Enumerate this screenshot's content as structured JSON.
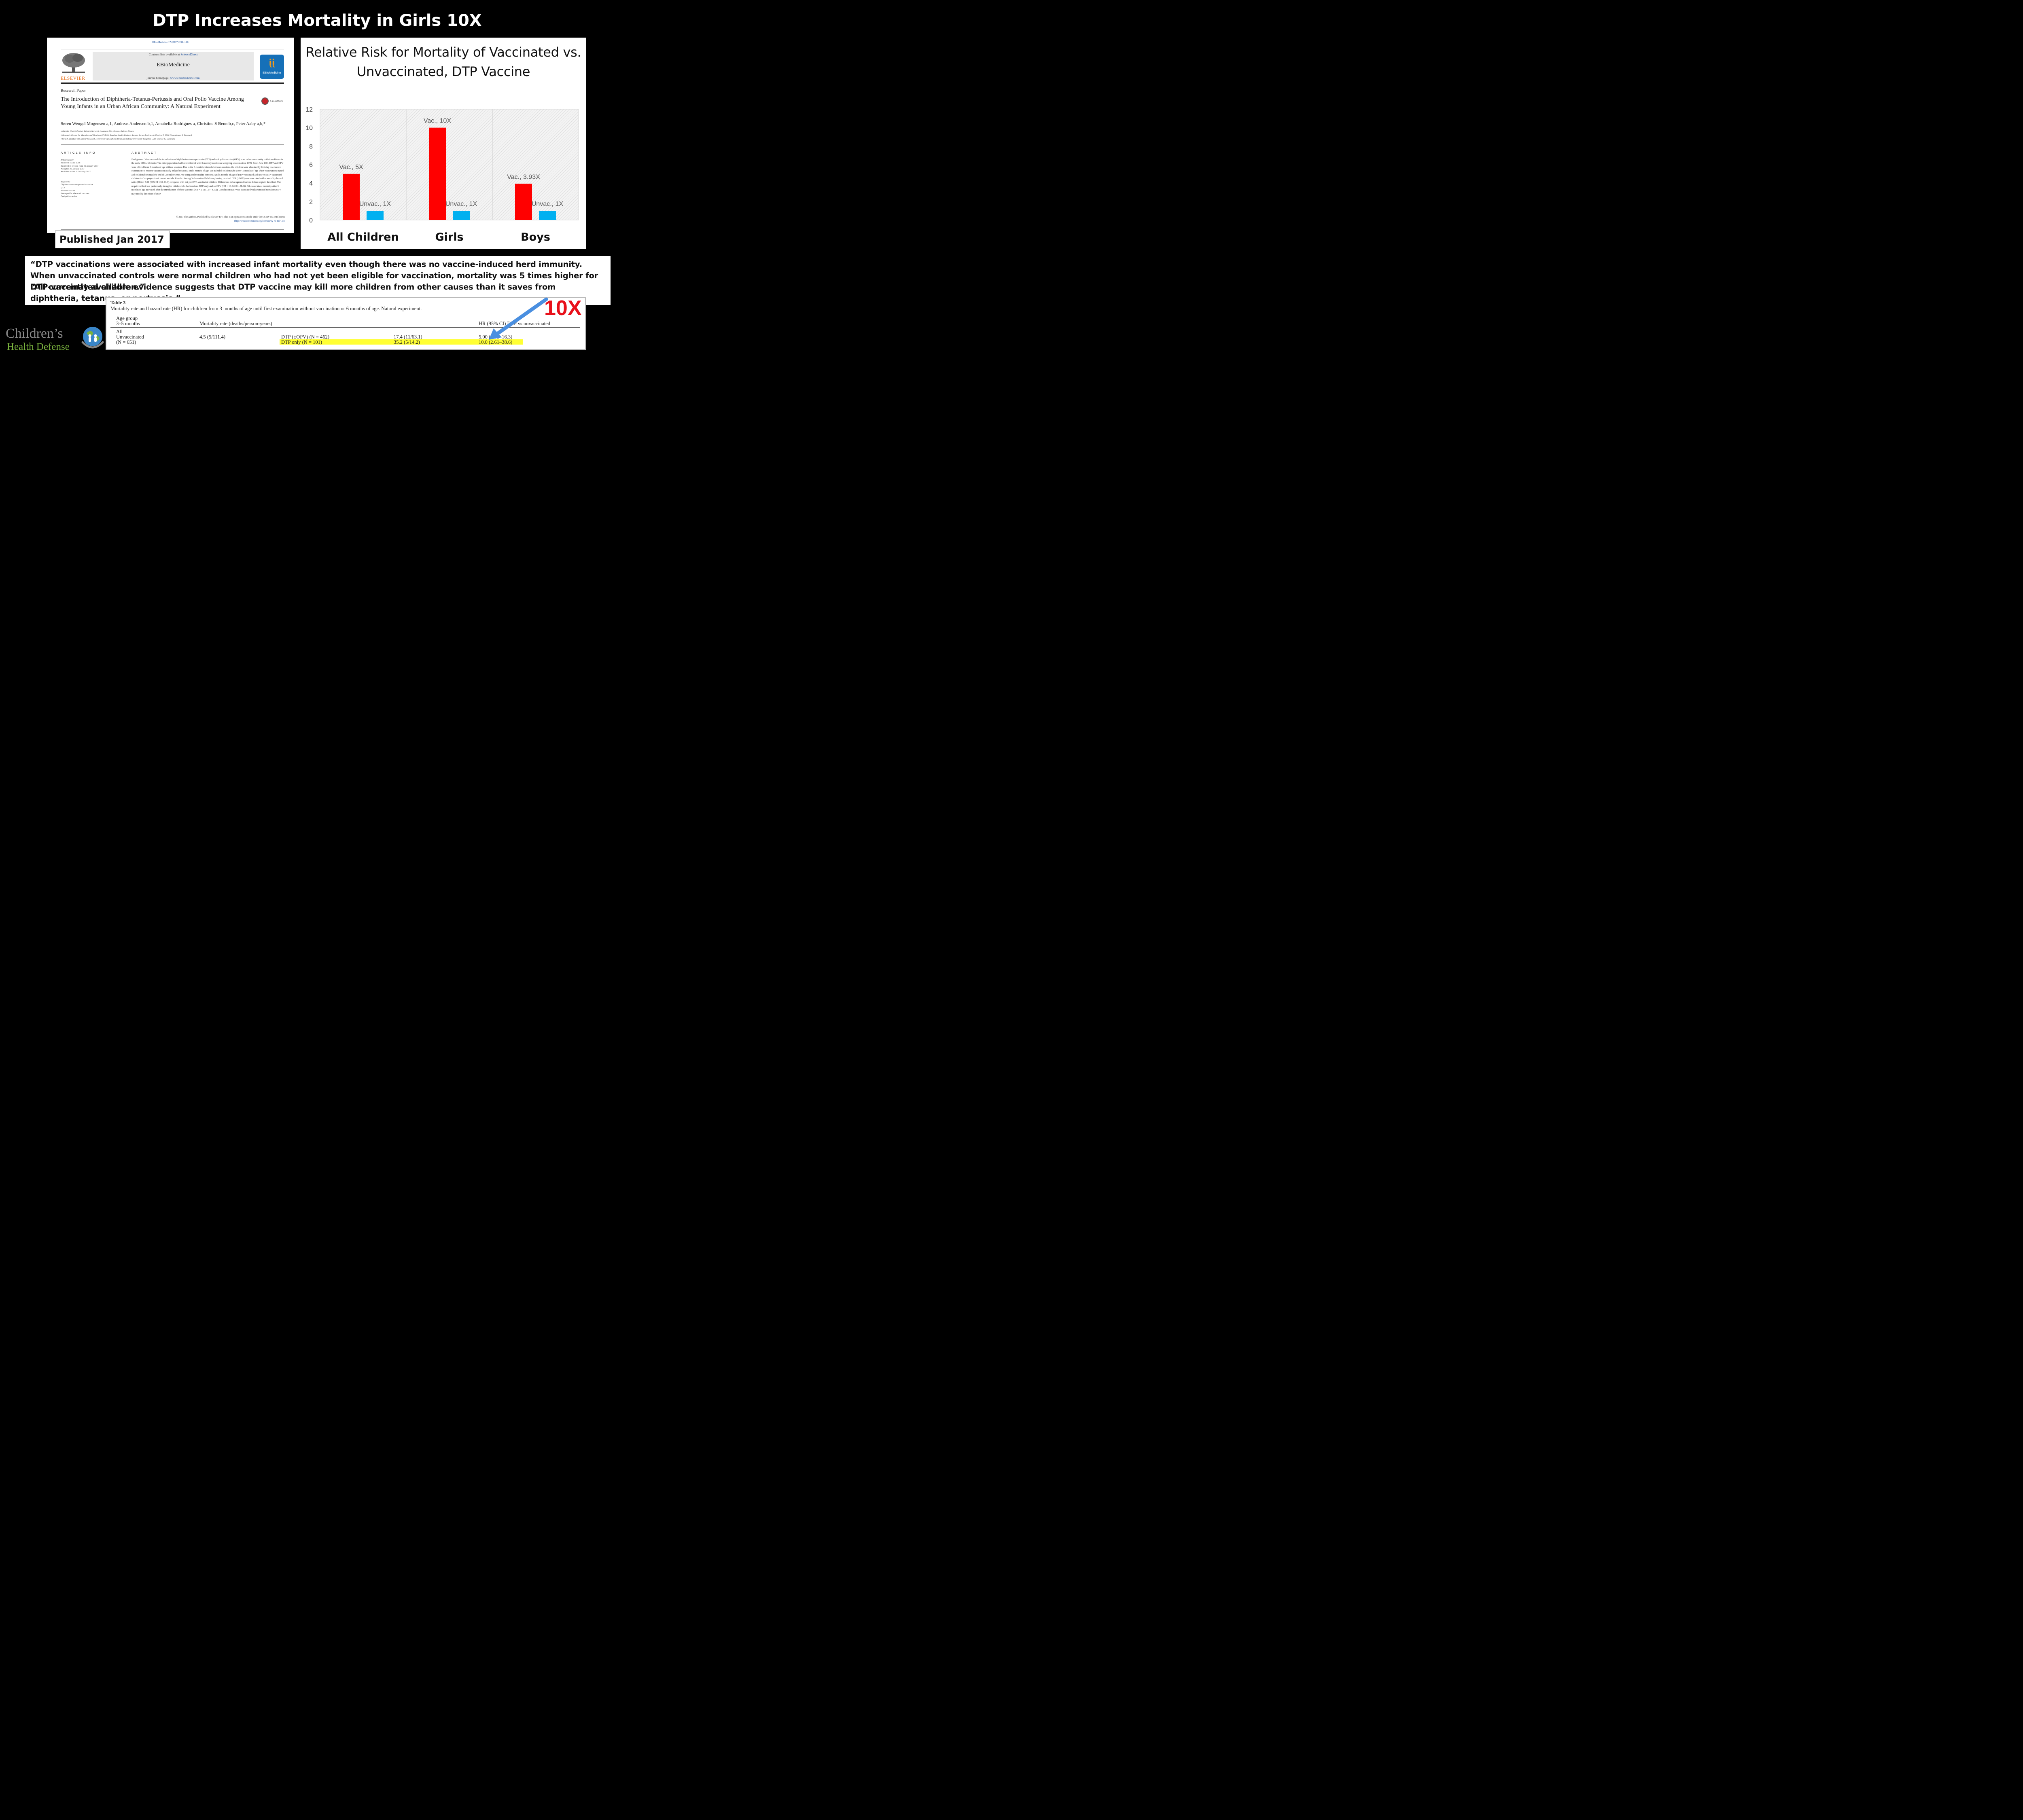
{
  "slide": {
    "title": "DTP Increases Mortality in Girls 10X",
    "published_label": "Published Jan 2017"
  },
  "paper": {
    "citation": "EBioMedicine 17 (2017) 192–198",
    "contents_prefix": "Contents lists available at ",
    "contents_link": "ScienceDirect",
    "journal_name": "EBioMedicine",
    "homepage_prefix": "journal homepage: ",
    "homepage_link": "www.ebiomedicine.com",
    "publisher": "ELSEVIER",
    "logo_text": "EBioMedicine",
    "crossmark": "CrossMark",
    "research_type": "Research Paper",
    "title": "The Introduction of Diphtheria-Tetanus-Pertussis and Oral Polio Vaccine Among Young Infants in an Urban African Community: A Natural Experiment",
    "authors": "Søren Wengel Mogensen a,1, Andreas Andersen b,1, Amabelia Rodrigues a, Christine S Benn b,c, Peter Aaby a,b,*",
    "affiliations": [
      "a Bandim Health Project, Indepth Network, Apartado 861, Bissau, Guinea-Bissau",
      "b Research Centre for Vitamins and Vaccines (CVIVA), Bandim Health Project, Statens Serum Institut, Artillerivej 5, 2300 Copenhagen S, Denmark",
      "c OPEN, Institute of Clinical Research, University of Southern Denmark/Odense University Hospital, 5000 Odense C, Denmark"
    ],
    "article_info_heading": "ARTICLE INFO",
    "article_history": [
      "Article history:",
      "Received 4 June 2016",
      "Received in revised form 21 January 2017",
      "Accepted 29 January 2017",
      "Available online 1 February 2017"
    ],
    "keywords": [
      "Keywords:",
      "Diphtheria-tetanus-pertussis vaccine",
      "DTP",
      "Measles vaccine",
      "Non-specific effects of vaccines",
      "Oral polio vaccine"
    ],
    "abstract_heading": "ABSTRACT",
    "abstract": "Background: We examined the introduction of diphtheria-tetanus-pertussis (DTP) and oral polio vaccine (OPV) in an urban community in Guinea-Bissau in the early 1980s. Methods: The child population had been followed with 3-monthly nutritional weighing sessions since 1978. From June 1981 DTP and OPV were offered from 3 months of age at these sessions. Due to the 3-monthly intervals between sessions, the children were allocated by birthday in a 'natural experiment' to receive vaccinations early or late between 3 and 5 months of age. We included children who were <6 months of age when vaccinations started and children born until the end of December 1983. We compared mortality between 3 and 5 months of age of DTP-vaccinated and not-yet-DTP-vaccinated children in Cox proportional hazard models. Results: Among 3–5-month-old children, having received DTP (±OPV) was associated with a mortality hazard ratio (HR) of 5.00 (95% CI 1.53–16.3) compared with not-yet-DTP-vaccinated children. Differences in background factors did not explain the effect. The negative effect was particularly strong for children who had received DTP-only and no OPV (HR = 10.0 (2.61–38.6)). All-cause infant mortality after 3 months of age increased after the introduction of these vaccines (HR = 2.12 (1.07–4.19)). Conclusion: DTP was associated with increased mortality; OPV may modify the effect of DTP.",
    "copyright": "© 2017 The Authors. Published by Elsevier B.V. This is an open access article under the CC BY-NC-ND license",
    "license_link": "(http://creativecommons.org/licenses/by-nc-nd/4.0/)."
  },
  "chart_data": {
    "type": "bar",
    "title": "Relative Risk for Mortality of Vaccinated vs. Unvaccinated, DTP Vaccine",
    "categories": [
      "All Children",
      "Girls",
      "Boys"
    ],
    "series": [
      {
        "values": [
          5,
          10,
          3.93
        ],
        "color": "#ff0000",
        "labels": [
          "Vac., 5X",
          "Vac., 10X",
          "Vac., 3.93X"
        ]
      },
      {
        "values": [
          1,
          1,
          1
        ],
        "color": "#00b0f0",
        "labels": [
          "Unvac., 1X",
          "Unvac., 1X",
          "Unvac., 1X"
        ]
      }
    ],
    "ylim": [
      0,
      12
    ],
    "yticks": [
      0,
      2,
      4,
      6,
      8,
      10,
      12
    ],
    "grid": false,
    "xlabel": "",
    "ylabel": ""
  },
  "quotes": [
    "“DTP vaccinations were associated with increased infant mortality even though there was no vaccine-induced herd immunity. When unvaccinated controls were normal children who had not yet been eligible for vaccination, mortality was 5 times higher for DTP-vaccinated children.”",
    "“All currently available evidence suggests that DTP vaccine may kill more children from other causes than it saves from diphtheria, tetanus, or pertussis.”"
  ],
  "table3": {
    "label": "Table 3",
    "caption": "Mortality rate and hazard rate (HR) for children from 3 months of age until first examination without vaccination or 6 months of age. Natural experiment.",
    "headers": [
      "Age group",
      "3–5 months",
      "Mortality rate (deaths/person-years)",
      "HR (95% CI) DTP vs unvaccinated"
    ],
    "group": "All",
    "unvaccinated_label": "Unvaccinated",
    "unvaccinated_n": "(N = 651)",
    "unvaccinated_rate": "4.5 (5/111.4)",
    "rows": [
      {
        "group": "DTP (±OPV) (N = 462)",
        "rate": "17.4 (11/63.1)",
        "hr": "5.00 (1.53–16.3)"
      },
      {
        "group": "DTP only (N = 101)",
        "rate": "35.2 (5/14.2)",
        "hr": "10.0 (2.61–38.6)"
      }
    ],
    "highlight_color": "#ffff33",
    "callout": "10X",
    "callout_color": "#e8101a",
    "arrow_color": "#4a8fe0"
  },
  "logo": {
    "line1": "Children’s",
    "line2": "Health Defense",
    "icon": "globe-family-icon"
  }
}
